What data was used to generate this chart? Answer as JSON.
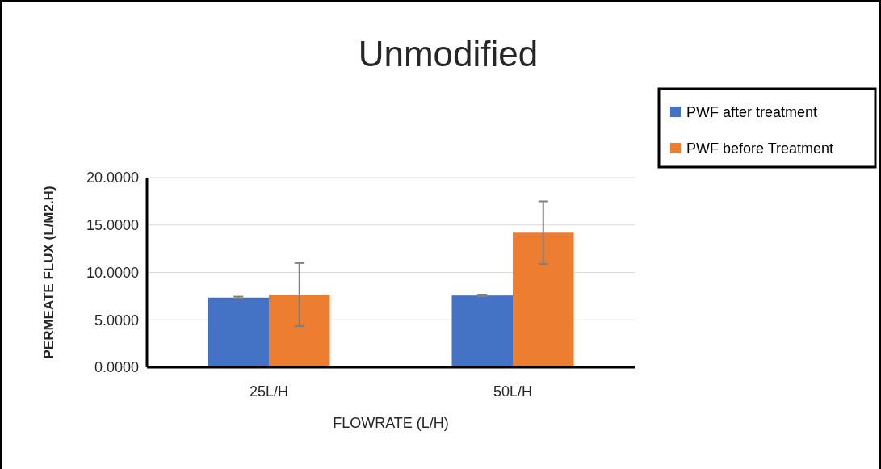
{
  "chart_data": {
    "type": "bar",
    "title": "Unmodified",
    "xlabel": "FLOWRATE (L/H)",
    "ylabel": "PERMEATE FLUX (L/M2.H)",
    "categories": [
      "25L/H",
      "50L/H"
    ],
    "series": [
      {
        "name": "PWF after treatment",
        "color": "#4472c4",
        "values": [
          7.34,
          7.56
        ],
        "errors": [
          0.1,
          0.1
        ]
      },
      {
        "name": "PWF before Treatment",
        "color": "#ed7d31",
        "values": [
          7.66,
          14.19
        ],
        "errors": [
          3.33,
          3.3
        ]
      }
    ],
    "ylim": [
      0,
      20
    ],
    "yticks": [
      {
        "value": 0,
        "label": "0.0000"
      },
      {
        "value": 5,
        "label": "5.0000"
      },
      {
        "value": 10,
        "label": "10.0000"
      },
      {
        "value": 15,
        "label": "15.0000"
      },
      {
        "value": 20,
        "label": "20.0000"
      }
    ],
    "grid": "y",
    "legend": "top right"
  }
}
